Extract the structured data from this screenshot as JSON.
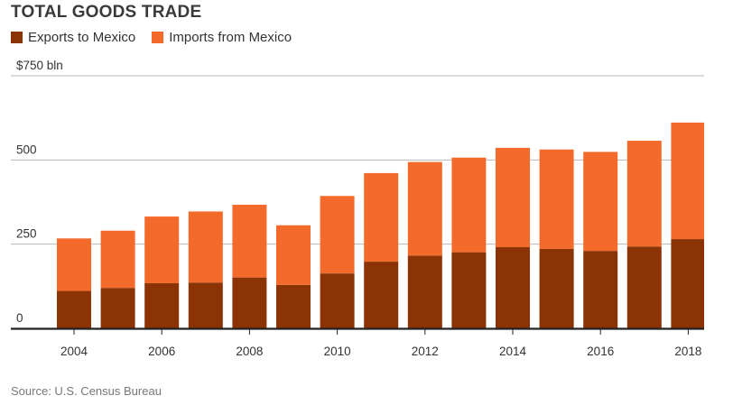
{
  "chart_data": {
    "type": "bar",
    "stacked": true,
    "title": "TOTAL GOODS TRADE",
    "unit_label": "$750  bln",
    "categories": [
      "2004",
      "2005",
      "2006",
      "2007",
      "2008",
      "2009",
      "2010",
      "2011",
      "2012",
      "2013",
      "2014",
      "2015",
      "2016",
      "2017",
      "2018"
    ],
    "x_tick_labels": [
      "2004",
      "2006",
      "2008",
      "2010",
      "2012",
      "2014",
      "2016",
      "2018"
    ],
    "series": [
      {
        "name": "Exports to Mexico",
        "color": "#8b3305",
        "values": [
          111,
          120,
          134,
          136,
          151,
          129,
          163,
          198,
          216,
          226,
          241,
          236,
          230,
          243,
          265
        ]
      },
      {
        "name": "Imports from Mexico",
        "color": "#f36a2b",
        "values": [
          156,
          170,
          198,
          211,
          216,
          177,
          230,
          263,
          278,
          281,
          295,
          295,
          294,
          314,
          346
        ]
      }
    ],
    "y_ticks": [
      {
        "value": 750,
        "label": "$750  bln"
      },
      {
        "value": 500,
        "label": "500"
      },
      {
        "value": 250,
        "label": "250"
      },
      {
        "value": 0,
        "label": "0"
      }
    ],
    "ylim": [
      0,
      750
    ],
    "grid": true,
    "legend": "top-left",
    "source": "Source: U.S. Census Bureau"
  }
}
